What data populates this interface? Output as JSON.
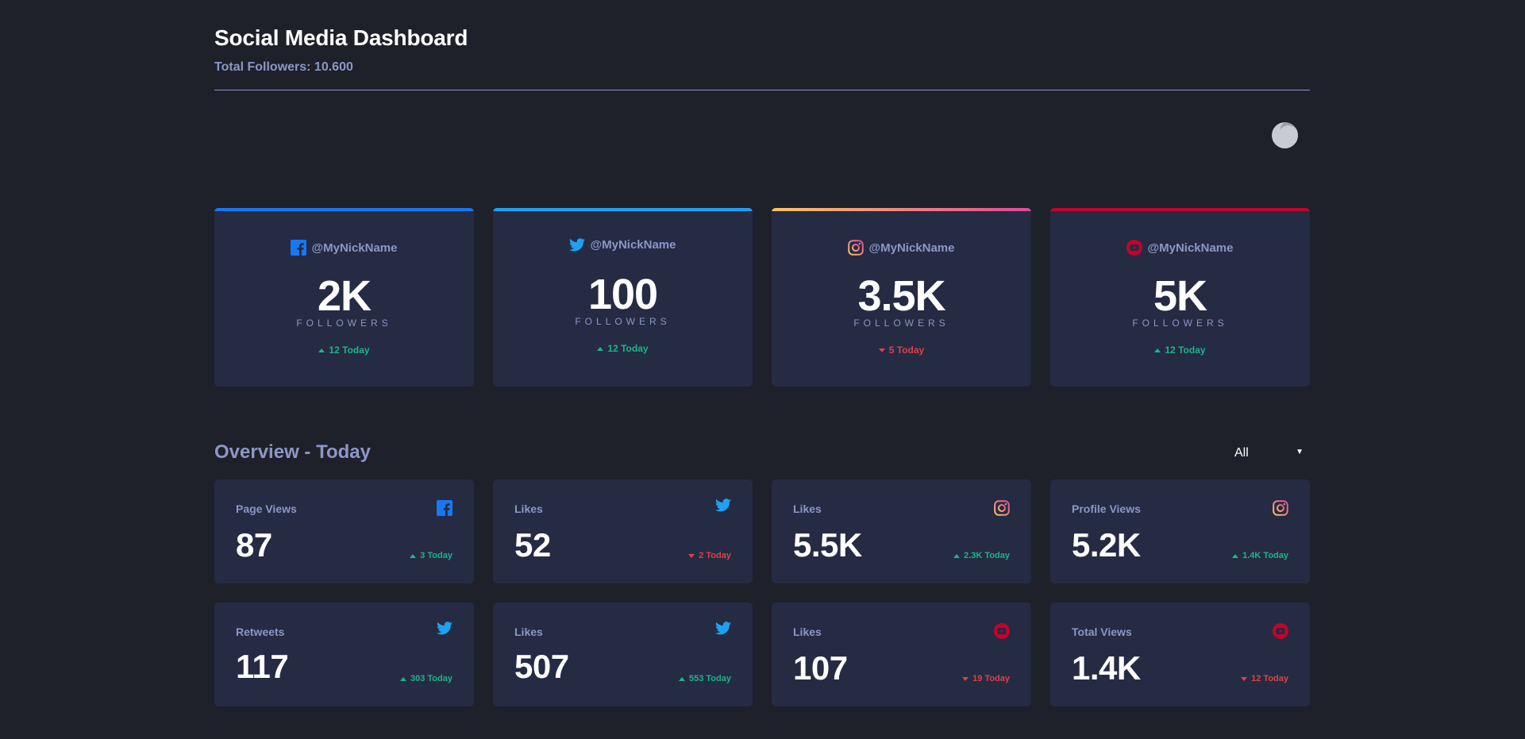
{
  "header": {
    "title": "Social Media Dashboard",
    "total_followers": "Total Followers: 10.600"
  },
  "theme_toggle": {
    "icon": "moon-icon"
  },
  "colors": {
    "facebook": "#1877f2",
    "twitter": "#1da1f2",
    "instagram_start": "#fdc468",
    "instagram_end": "#df4996",
    "youtube": "#c4032b",
    "up": "#1db489",
    "down": "#dc414c"
  },
  "cards": [
    {
      "network": "facebook",
      "icon": "facebook-icon",
      "handle": "@MyNickName",
      "count": "2K",
      "label": "FOLLOWERS",
      "delta": "12 Today",
      "trend": "up"
    },
    {
      "network": "twitter",
      "icon": "twitter-icon",
      "handle": "@MyNickName",
      "count": "100",
      "label": "FOLLOWERS",
      "delta": "12 Today",
      "trend": "up"
    },
    {
      "network": "instagram",
      "icon": "instagram-icon",
      "handle": "@MyNickName",
      "count": "3.5K",
      "label": "FOLLOWERS",
      "delta": "5 Today",
      "trend": "down"
    },
    {
      "network": "youtube",
      "icon": "youtube-icon",
      "handle": "@MyNickName",
      "count": "5K",
      "label": "FOLLOWERS",
      "delta": "12 Today",
      "trend": "up"
    }
  ],
  "overview": {
    "title": "Overview - Today",
    "filter": {
      "selected": "All"
    },
    "items": [
      {
        "label": "Page Views",
        "network": "facebook",
        "icon": "facebook-icon",
        "value": "87",
        "delta": "3 Today",
        "trend": "up"
      },
      {
        "label": "Likes",
        "network": "twitter",
        "icon": "twitter-icon",
        "value": "52",
        "delta": "2 Today",
        "trend": "down"
      },
      {
        "label": "Likes",
        "network": "instagram",
        "icon": "instagram-icon",
        "value": "5.5K",
        "delta": "2.3K Today",
        "trend": "up"
      },
      {
        "label": "Profile Views",
        "network": "instagram",
        "icon": "instagram-icon",
        "value": "5.2K",
        "delta": "1.4K Today",
        "trend": "up"
      },
      {
        "label": "Retweets",
        "network": "twitter",
        "icon": "twitter-icon",
        "value": "117",
        "delta": "303 Today",
        "trend": "up"
      },
      {
        "label": "Likes",
        "network": "twitter",
        "icon": "twitter-icon",
        "value": "507",
        "delta": "553 Today",
        "trend": "up"
      },
      {
        "label": "Likes",
        "network": "youtube",
        "icon": "youtube-icon",
        "value": "107",
        "delta": "19 Today",
        "trend": "down"
      },
      {
        "label": "Total Views",
        "network": "youtube",
        "icon": "youtube-icon",
        "value": "1.4K",
        "delta": "12 Today",
        "trend": "down"
      }
    ]
  }
}
